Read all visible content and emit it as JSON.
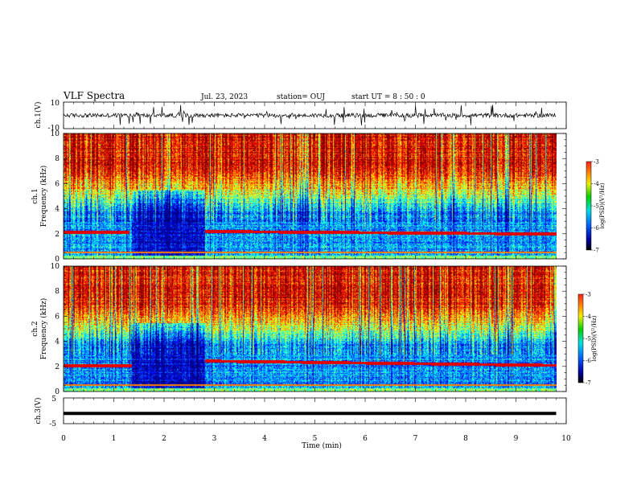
{
  "header": {
    "title": "VLF Spectra",
    "date": "Jul. 23, 2023",
    "station": "station= OUJ",
    "start": "start  UT =   8  : 50 : 0"
  },
  "chart_data": [
    {
      "type": "line",
      "name": "ch1-waveform",
      "ylabel": "ch.1(V)",
      "ylim": [
        -10,
        10
      ],
      "yticks": [
        "10",
        "-10"
      ],
      "x_range_min": [
        0,
        10
      ],
      "data_extent_min": 9.8
    },
    {
      "type": "heatmap",
      "name": "ch1-spectrogram",
      "ylabel_lines": [
        "ch.1",
        "Frequency (kHz)"
      ],
      "ylim": [
        0,
        10
      ],
      "yticks": [
        "0",
        "2",
        "4",
        "6",
        "8",
        "10"
      ],
      "x_range_min": [
        0,
        10
      ],
      "data_extent_min": 9.8,
      "colorbar": {
        "label": "log(PSD)(V²/Hz)",
        "range": [
          -7,
          -3
        ],
        "ticks": [
          "-3",
          "-4",
          "-5",
          "-6",
          "-7"
        ]
      }
    },
    {
      "type": "heatmap",
      "name": "ch2-spectrogram",
      "ylabel_lines": [
        "ch.2",
        "Frequency (kHz)"
      ],
      "ylim": [
        0,
        10
      ],
      "yticks": [
        "0",
        "2",
        "4",
        "6",
        "8",
        "10"
      ],
      "x_range_min": [
        0,
        10
      ],
      "data_extent_min": 9.8,
      "colorbar": {
        "label": "log(PSD)(V²/Hz)",
        "range": [
          -7,
          -3
        ],
        "ticks": [
          "-3",
          "-4",
          "-5",
          "-6",
          "-7"
        ]
      }
    },
    {
      "type": "line",
      "name": "ch3-waveform",
      "ylabel": "ch.3(V)",
      "ylim": [
        -5,
        5
      ],
      "yticks": [
        "5",
        "-5"
      ],
      "x_range_min": [
        0,
        10
      ],
      "data_extent_min": 9.8,
      "level": -1
    }
  ],
  "xaxis": {
    "label": "Time (min)",
    "ticks": [
      "0",
      "1",
      "2",
      "3",
      "4",
      "5",
      "6",
      "7",
      "8",
      "9",
      "10"
    ]
  }
}
